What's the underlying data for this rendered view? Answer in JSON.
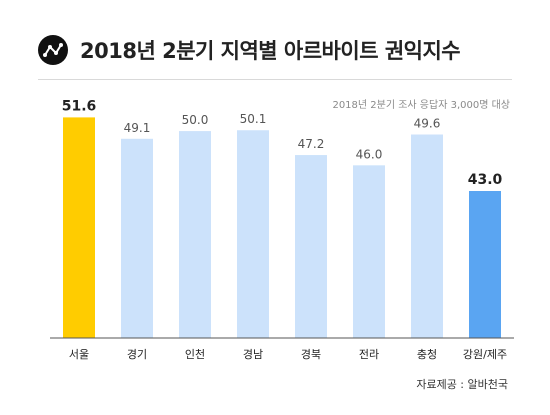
{
  "header": {
    "title": "2018년 2분기 지역별 아르바이트 권익지수",
    "logo_icon": "chart-line-icon"
  },
  "subtitle": "2018년 2분기 조사 응답자 3,000명 대상",
  "source": "자료제공 : 알바천국",
  "colors": {
    "default_bar": "#cce2fb",
    "highest_bar": "#ffcc00",
    "lowest_bar": "#5aa5f2",
    "axis": "#555555"
  },
  "chart_data": {
    "type": "bar",
    "categories": [
      "서울",
      "경기",
      "인천",
      "경남",
      "경북",
      "전라",
      "충청",
      "강원/제주"
    ],
    "values": [
      51.6,
      49.1,
      50.0,
      50.1,
      47.2,
      46.0,
      49.6,
      43.0
    ],
    "value_labels": [
      "51.6",
      "49.1",
      "50.0",
      "50.1",
      "47.2",
      "46.0",
      "49.6",
      "43.0"
    ],
    "highlight": {
      "highest_index": 0,
      "lowest_index": 7
    },
    "title": "",
    "xlabel": "",
    "ylabel": "",
    "grid": false,
    "legend": "none"
  }
}
